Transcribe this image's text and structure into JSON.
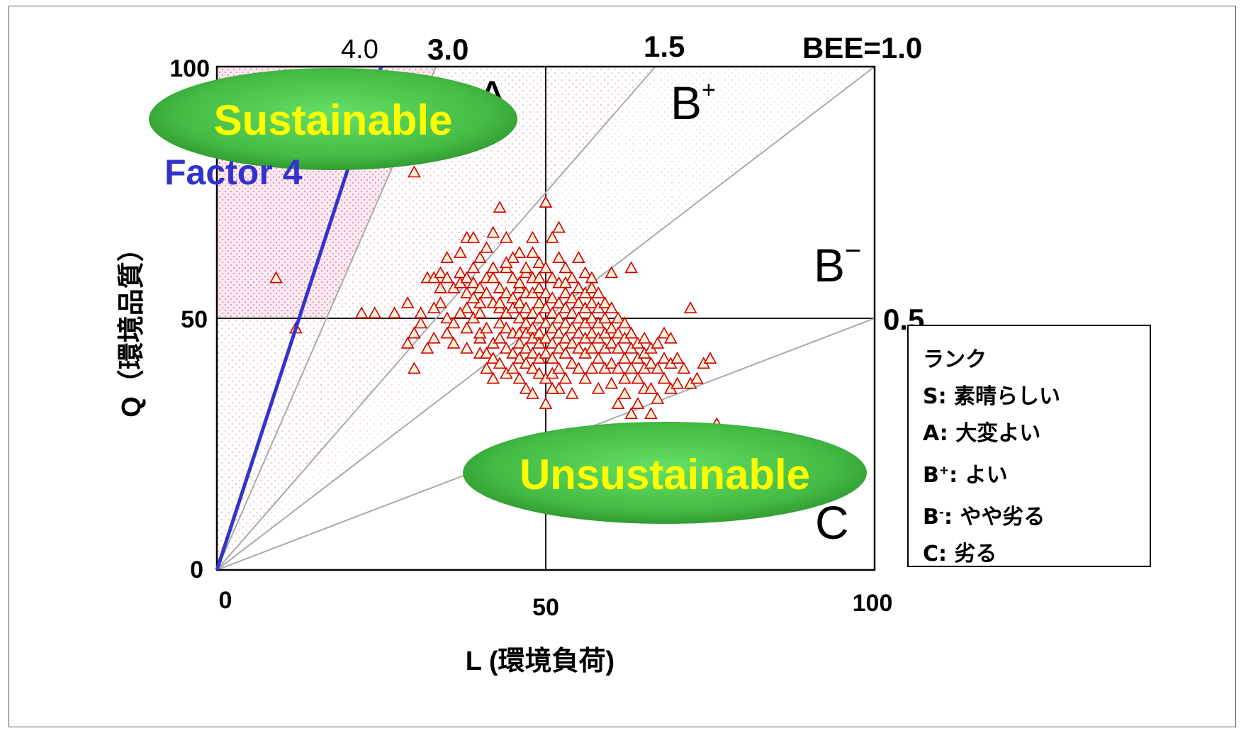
{
  "chart_data": {
    "type": "scatter",
    "xlabel": "L (環境負荷)",
    "ylabel": "Q（環境品質）",
    "xlim": [
      0,
      100
    ],
    "ylim": [
      0,
      100
    ],
    "x_ticks": [
      "0",
      "50",
      "100"
    ],
    "y_ticks": [
      "0",
      "50",
      "100"
    ],
    "bee_lines": [
      {
        "label": "4.0",
        "slope": 4.0
      },
      {
        "label": "3.0",
        "slope": 3.0
      },
      {
        "label": "1.5",
        "slope": 1.5
      },
      {
        "label": "BEE=1.0",
        "slope": 1.0
      },
      {
        "label": "0.5",
        "slope": 0.5
      }
    ],
    "factor_line_label": "Factor 4",
    "zones": {
      "A": "A",
      "B_plus": "B",
      "B_minus": "B",
      "C": "C"
    },
    "callouts": {
      "sustainable": "Sustainable",
      "unsustainable": "Unsustainable"
    },
    "series": [
      {
        "marker": "triangle",
        "points": [
          [
            9,
            58
          ],
          [
            12,
            48
          ],
          [
            30,
            79
          ],
          [
            22,
            51
          ],
          [
            24,
            51
          ],
          [
            27,
            51
          ],
          [
            29,
            53
          ],
          [
            30,
            47
          ],
          [
            29,
            45
          ],
          [
            30,
            40
          ],
          [
            31,
            51
          ],
          [
            32,
            58
          ],
          [
            33,
            58
          ],
          [
            31,
            49
          ],
          [
            33,
            46
          ],
          [
            34,
            59
          ],
          [
            34,
            53
          ],
          [
            35,
            62
          ],
          [
            35,
            58
          ],
          [
            34,
            56
          ],
          [
            35,
            50
          ],
          [
            33,
            52
          ],
          [
            36,
            49
          ],
          [
            36,
            45
          ],
          [
            36,
            56
          ],
          [
            37,
            57
          ],
          [
            37,
            59
          ],
          [
            37,
            63
          ],
          [
            38,
            66
          ],
          [
            38,
            58
          ],
          [
            38,
            55
          ],
          [
            38,
            52
          ],
          [
            38,
            48
          ],
          [
            38,
            44
          ],
          [
            39,
            57
          ],
          [
            39,
            60
          ],
          [
            39,
            66
          ],
          [
            39,
            50
          ],
          [
            40,
            56
          ],
          [
            40,
            62
          ],
          [
            40,
            46
          ],
          [
            40,
            43
          ],
          [
            40,
            53
          ],
          [
            40,
            47
          ],
          [
            41,
            58
          ],
          [
            41,
            64
          ],
          [
            41,
            55
          ],
          [
            41,
            48
          ],
          [
            41,
            43
          ],
          [
            41,
            40
          ],
          [
            42,
            58
          ],
          [
            42,
            53
          ],
          [
            42,
            60
          ],
          [
            42,
            67
          ],
          [
            42,
            45
          ],
          [
            42,
            42
          ],
          [
            42,
            38
          ],
          [
            43,
            72
          ],
          [
            43,
            56
          ],
          [
            43,
            52
          ],
          [
            43,
            49
          ],
          [
            43,
            46
          ],
          [
            43,
            41
          ],
          [
            44,
            60
          ],
          [
            44,
            55
          ],
          [
            44,
            51
          ],
          [
            44,
            48
          ],
          [
            44,
            44
          ],
          [
            44,
            39
          ],
          [
            44,
            66
          ],
          [
            45,
            58
          ],
          [
            45,
            54
          ],
          [
            45,
            52
          ],
          [
            45,
            47
          ],
          [
            45,
            43
          ],
          [
            45,
            40
          ],
          [
            46,
            63
          ],
          [
            46,
            56
          ],
          [
            46,
            53
          ],
          [
            46,
            50
          ],
          [
            46,
            47
          ],
          [
            46,
            45
          ],
          [
            46,
            42
          ],
          [
            46,
            38
          ],
          [
            47,
            59
          ],
          [
            47,
            55
          ],
          [
            47,
            52
          ],
          [
            47,
            49
          ],
          [
            47,
            47
          ],
          [
            47,
            44
          ],
          [
            47,
            41
          ],
          [
            47,
            36
          ],
          [
            48,
            63
          ],
          [
            48,
            58
          ],
          [
            48,
            55
          ],
          [
            48,
            51
          ],
          [
            48,
            48
          ],
          [
            48,
            46
          ],
          [
            48,
            43
          ],
          [
            48,
            40
          ],
          [
            48,
            35
          ],
          [
            49,
            61
          ],
          [
            49,
            56
          ],
          [
            49,
            53
          ],
          [
            49,
            50
          ],
          [
            49,
            47
          ],
          [
            49,
            45
          ],
          [
            49,
            42
          ],
          [
            49,
            39
          ],
          [
            50,
            73
          ],
          [
            50,
            60
          ],
          [
            50,
            55
          ],
          [
            50,
            52
          ],
          [
            50,
            49
          ],
          [
            50,
            46
          ],
          [
            50,
            43
          ],
          [
            50,
            38
          ],
          [
            50,
            33
          ],
          [
            51,
            66
          ],
          [
            51,
            58
          ],
          [
            51,
            54
          ],
          [
            51,
            51
          ],
          [
            51,
            48
          ],
          [
            51,
            45
          ],
          [
            51,
            42
          ],
          [
            51,
            39
          ],
          [
            52,
            62
          ],
          [
            52,
            57
          ],
          [
            52,
            53
          ],
          [
            52,
            50
          ],
          [
            52,
            47
          ],
          [
            52,
            44
          ],
          [
            52,
            40
          ],
          [
            52,
            36
          ],
          [
            53,
            60
          ],
          [
            53,
            55
          ],
          [
            53,
            52
          ],
          [
            53,
            49
          ],
          [
            53,
            46
          ],
          [
            53,
            43
          ],
          [
            53,
            38
          ],
          [
            54,
            58
          ],
          [
            54,
            54
          ],
          [
            54,
            51
          ],
          [
            54,
            48
          ],
          [
            54,
            45
          ],
          [
            54,
            41
          ],
          [
            55,
            56
          ],
          [
            55,
            53
          ],
          [
            55,
            50
          ],
          [
            55,
            47
          ],
          [
            55,
            44
          ],
          [
            55,
            40
          ],
          [
            56,
            59
          ],
          [
            56,
            55
          ],
          [
            56,
            52
          ],
          [
            56,
            49
          ],
          [
            56,
            46
          ],
          [
            56,
            43
          ],
          [
            56,
            38
          ],
          [
            57,
            56
          ],
          [
            57,
            53
          ],
          [
            57,
            50
          ],
          [
            57,
            47
          ],
          [
            57,
            44
          ],
          [
            57,
            40
          ],
          [
            58,
            55
          ],
          [
            58,
            52
          ],
          [
            58,
            49
          ],
          [
            58,
            46
          ],
          [
            58,
            42
          ],
          [
            59,
            53
          ],
          [
            59,
            50
          ],
          [
            59,
            47
          ],
          [
            59,
            44
          ],
          [
            59,
            40
          ],
          [
            60,
            59
          ],
          [
            60,
            52
          ],
          [
            60,
            48
          ],
          [
            60,
            45
          ],
          [
            60,
            41
          ],
          [
            60,
            37
          ],
          [
            61,
            50
          ],
          [
            61,
            47
          ],
          [
            61,
            44
          ],
          [
            61,
            40
          ],
          [
            62,
            49
          ],
          [
            62,
            46
          ],
          [
            62,
            42
          ],
          [
            62,
            38
          ],
          [
            63,
            60
          ],
          [
            63,
            47
          ],
          [
            63,
            44
          ],
          [
            63,
            40
          ],
          [
            63,
            31
          ],
          [
            64,
            45
          ],
          [
            64,
            42
          ],
          [
            64,
            38
          ],
          [
            64,
            33
          ],
          [
            65,
            46
          ],
          [
            65,
            43
          ],
          [
            65,
            40
          ],
          [
            65,
            36
          ],
          [
            66,
            44
          ],
          [
            66,
            41
          ],
          [
            66,
            36
          ],
          [
            67,
            45
          ],
          [
            67,
            40
          ],
          [
            67,
            34
          ],
          [
            68,
            47
          ],
          [
            68,
            42
          ],
          [
            68,
            38
          ],
          [
            69,
            46
          ],
          [
            69,
            41
          ],
          [
            69,
            36
          ],
          [
            70,
            42
          ],
          [
            70,
            37
          ],
          [
            71,
            40
          ],
          [
            72,
            52
          ],
          [
            72,
            37
          ],
          [
            73,
            38
          ],
          [
            74,
            41
          ],
          [
            75,
            42
          ],
          [
            76,
            29
          ],
          [
            47,
            60
          ],
          [
            45,
            62
          ],
          [
            52,
            68
          ],
          [
            55,
            62
          ],
          [
            48,
            66
          ],
          [
            44,
            61
          ],
          [
            46,
            57
          ],
          [
            49,
            58
          ],
          [
            53,
            57
          ],
          [
            57,
            58
          ],
          [
            51,
            36
          ],
          [
            54,
            35
          ],
          [
            58,
            36
          ],
          [
            62,
            35
          ],
          [
            66,
            31
          ],
          [
            61,
            33
          ],
          [
            43,
            53
          ],
          [
            40,
            51
          ],
          [
            39,
            54
          ],
          [
            37,
            51
          ],
          [
            35,
            47
          ],
          [
            32,
            44
          ]
        ]
      }
    ]
  },
  "legend": {
    "title": "ランク",
    "items": [
      {
        "key": "S",
        "sup": "",
        "text": "素晴らしい"
      },
      {
        "key": "A",
        "sup": "",
        "text": "大変よい"
      },
      {
        "key": "B",
        "sup": "+",
        "text": "よい"
      },
      {
        "key": "B",
        "sup": "-",
        "text": "やや劣る"
      },
      {
        "key": "C",
        "sup": "",
        "text": "劣る"
      }
    ]
  },
  "colors": {
    "marker": "#cc0000",
    "factor_line": "#3333cc",
    "callout_fill": "#44bb44",
    "callout_text": "#ffff00",
    "zone_fill": "#f3cfe0"
  }
}
